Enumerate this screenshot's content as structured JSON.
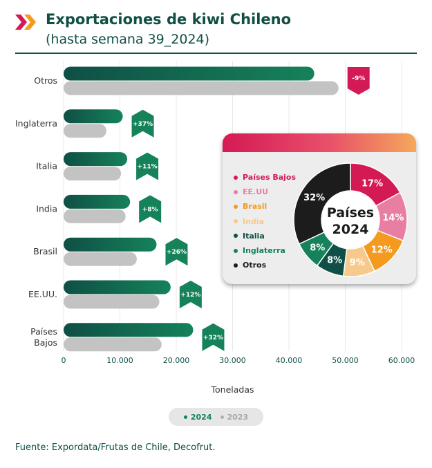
{
  "header": {
    "title": "Exportaciones de kiwi Chileno",
    "subtitle": "(hasta semana 39_2024)"
  },
  "colors": {
    "brand_green": "#0f4f45",
    "bar_2024": "#15825a",
    "bar_2023": "#c3c3c3",
    "badge_positive": "#15825a",
    "badge_negative": "#d41a55"
  },
  "chart_data": [
    {
      "type": "bar",
      "orientation": "horizontal",
      "categories": [
        "Otros",
        "Inglaterra",
        "Italia",
        "India",
        "Brasil",
        "EE.UU.",
        "Países Bajos"
      ],
      "series": [
        {
          "name": "2024",
          "values": [
            44500,
            10500,
            11300,
            11800,
            16500,
            19000,
            23000
          ]
        },
        {
          "name": "2023",
          "values": [
            48800,
            7600,
            10200,
            11000,
            13000,
            17000,
            17400
          ]
        }
      ],
      "variation_labels": [
        "-9%",
        "+37%",
        "+11%",
        "+8%",
        "+26%",
        "+12%",
        "+32%"
      ],
      "xlabel": "Toneladas",
      "xlim": [
        0,
        60000
      ],
      "xticks": [
        0,
        10000,
        20000,
        30000,
        40000,
        50000,
        60000
      ],
      "xtick_labels": [
        "0",
        "10.000",
        "20.000",
        "30.000",
        "40.000",
        "50.000",
        "60.000"
      ],
      "grid": "vertical",
      "legend": "bottom-center"
    },
    {
      "type": "pie",
      "style": "donut",
      "center_label": [
        "Países",
        "2024"
      ],
      "labels": [
        "Países Bajos",
        "EE.UU",
        "Brasil",
        "India",
        "Italia",
        "Inglaterra",
        "Otros"
      ],
      "values": [
        17,
        14,
        12,
        9,
        8,
        8,
        32
      ],
      "value_labels": [
        "17%",
        "14%",
        "12%",
        "9%",
        "8%",
        "8%",
        "32%"
      ],
      "colors": [
        "#d41a55",
        "#e87fa3",
        "#f39a1f",
        "#f7c98c",
        "#0f4f45",
        "#15825a",
        "#1c1c1c"
      ],
      "legend": "left"
    }
  ],
  "source": "Fuente: Expordata/Frutas de Chile, Decofrut."
}
